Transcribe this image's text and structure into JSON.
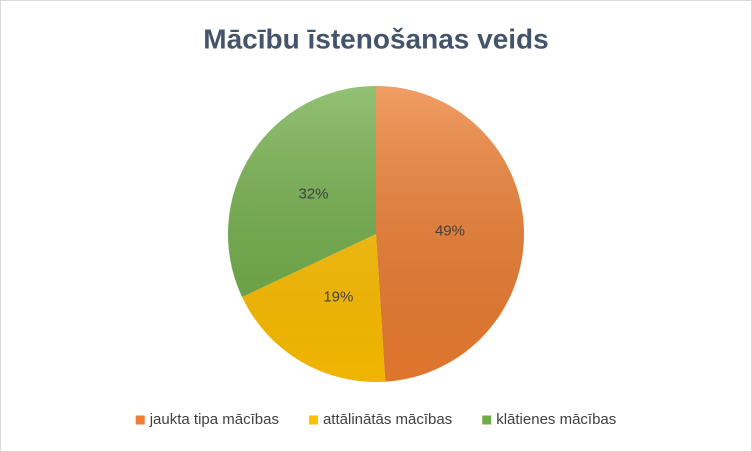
{
  "chart_data": {
    "type": "pie",
    "title": "Mācību īstenošanas veids",
    "categories": [
      "jaukta tipa mācības",
      "attālinātās mācības",
      "klātienes mācības"
    ],
    "values": [
      49,
      19,
      32
    ],
    "value_labels": [
      "49%",
      "19%",
      "32%"
    ],
    "colors": [
      "#ed7d31",
      "#ffc000",
      "#70ad47"
    ],
    "legend": "bottom"
  }
}
